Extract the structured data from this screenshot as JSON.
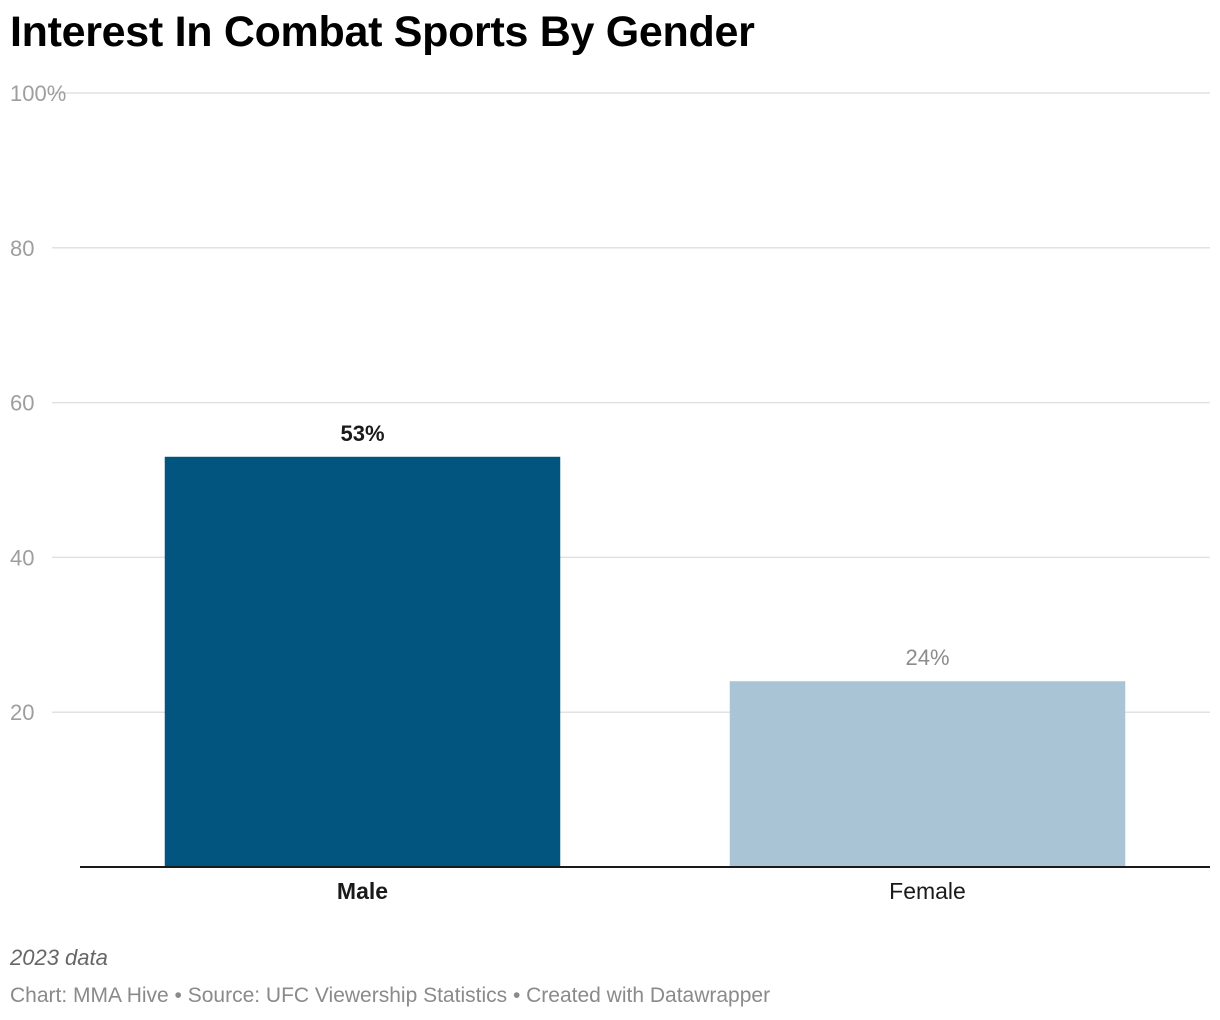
{
  "chart_data": {
    "type": "bar",
    "title": "Interest In Combat Sports By Gender",
    "categories": [
      "Male",
      "Female"
    ],
    "values": [
      53,
      24
    ],
    "value_labels": [
      "53%",
      "24%"
    ],
    "bar_colors": [
      "#02557f",
      "#a8c4d5"
    ],
    "category_label_weights": [
      "bold",
      "normal"
    ],
    "value_label_colors": [
      "#1a1a1a",
      "#8c8c8c"
    ],
    "ylim": [
      0,
      100
    ],
    "yticks": [
      20,
      40,
      60,
      80,
      100
    ],
    "ytick_labels": [
      "20",
      "40",
      "60",
      "80",
      "100%"
    ],
    "grid": true,
    "xlabel": "",
    "ylabel": ""
  },
  "notes": "2023 data",
  "footer": "Chart: MMA Hive • Source: UFC Viewership Statistics • Created with Datawrapper"
}
